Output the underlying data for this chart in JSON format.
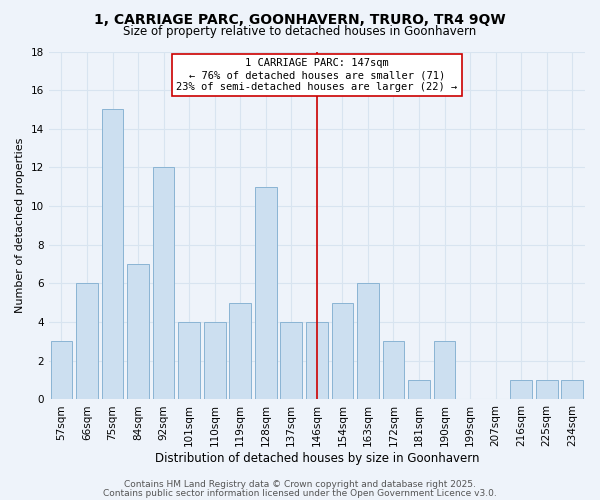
{
  "title1": "1, CARRIAGE PARC, GOONHAVERN, TRURO, TR4 9QW",
  "title2": "Size of property relative to detached houses in Goonhavern",
  "xlabel": "Distribution of detached houses by size in Goonhavern",
  "ylabel": "Number of detached properties",
  "bin_labels": [
    "57sqm",
    "66sqm",
    "75sqm",
    "84sqm",
    "92sqm",
    "101sqm",
    "110sqm",
    "119sqm",
    "128sqm",
    "137sqm",
    "146sqm",
    "154sqm",
    "163sqm",
    "172sqm",
    "181sqm",
    "190sqm",
    "199sqm",
    "207sqm",
    "216sqm",
    "225sqm",
    "234sqm"
  ],
  "bar_values": [
    3,
    6,
    15,
    7,
    12,
    4,
    4,
    5,
    11,
    4,
    4,
    5,
    6,
    3,
    1,
    3,
    0,
    0,
    1,
    1,
    1
  ],
  "bar_color": "#ccdff0",
  "bar_edge_color": "#8ab4d4",
  "ylim": [
    0,
    18
  ],
  "yticks": [
    0,
    2,
    4,
    6,
    8,
    10,
    12,
    14,
    16,
    18
  ],
  "vline_x_index": 10,
  "vline_color": "#cc0000",
  "annotation_title": "1 CARRIAGE PARC: 147sqm",
  "annotation_line1": "← 76% of detached houses are smaller (71)",
  "annotation_line2": "23% of semi-detached houses are larger (22) →",
  "footer1": "Contains HM Land Registry data © Crown copyright and database right 2025.",
  "footer2": "Contains public sector information licensed under the Open Government Licence v3.0.",
  "background_color": "#eef3fa",
  "grid_color": "#d8e4f0",
  "title1_fontsize": 10,
  "title2_fontsize": 8.5,
  "xlabel_fontsize": 8.5,
  "ylabel_fontsize": 8,
  "tick_fontsize": 7.5,
  "footer_fontsize": 6.5,
  "ann_fontsize": 7.5
}
